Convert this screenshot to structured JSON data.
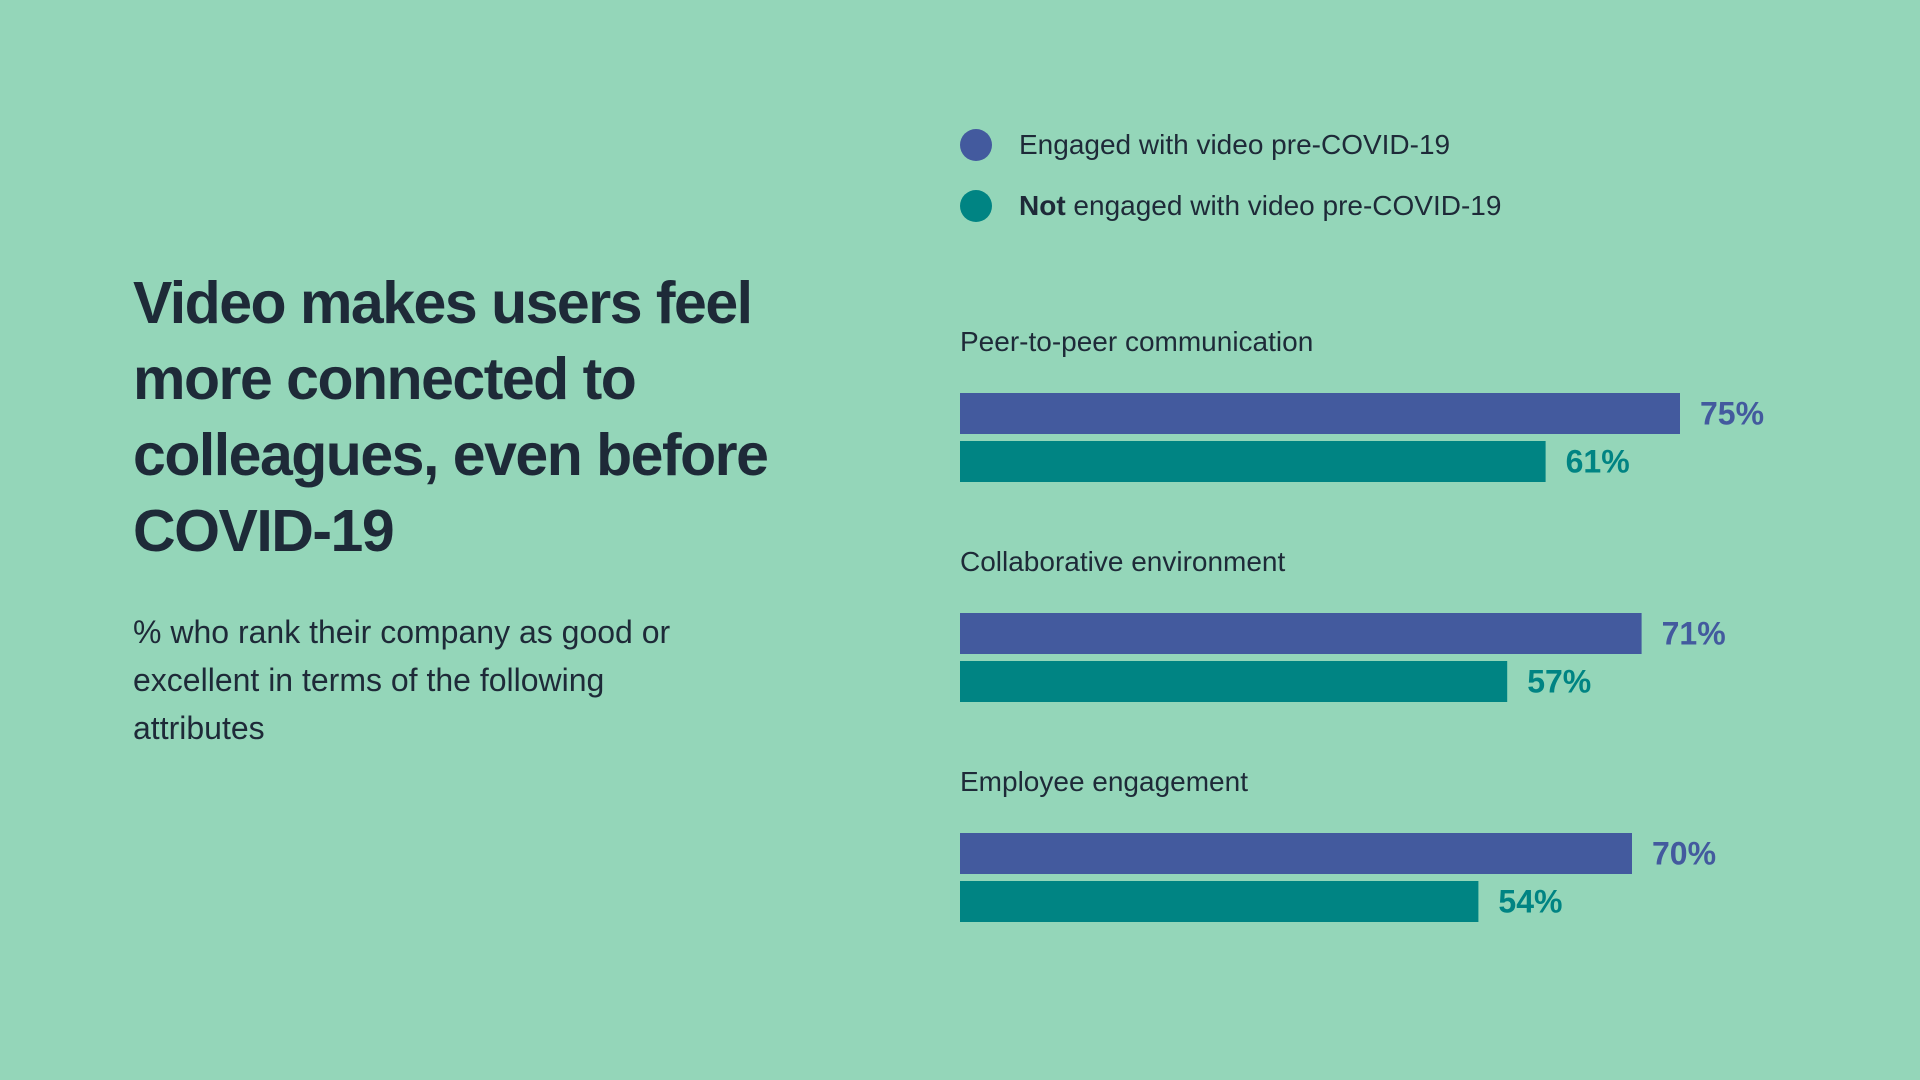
{
  "headline": "Video makes users feel more connected to colleagues, even before COVID-19",
  "subtitle": "% who rank their company as good or excellent in terms of the following attributes",
  "legend": {
    "engaged_label": "Engaged with video pre-COVID-19",
    "not_engaged_bold": "Not",
    "not_engaged_rest": " engaged with video pre-COVID-19"
  },
  "colors": {
    "background": "#94d6b9",
    "engaged": "#435a9e",
    "not_engaged": "#008483",
    "text": "#1e2a38"
  },
  "chart_data": {
    "type": "bar",
    "orientation": "horizontal",
    "categories": [
      "Peer-to-peer communication",
      "Collaborative environment",
      "Employee engagement"
    ],
    "series": [
      {
        "name": "Engaged with video pre-COVID-19",
        "values": [
          75,
          71,
          70
        ],
        "labels": [
          "75%",
          "71%",
          "70%"
        ]
      },
      {
        "name": "Not engaged with video pre-COVID-19",
        "values": [
          61,
          57,
          54
        ],
        "labels": [
          "61%",
          "57%",
          "54%"
        ]
      }
    ],
    "unit": "%",
    "xlim": [
      0,
      100
    ],
    "grid": false,
    "legend_position": "top"
  }
}
